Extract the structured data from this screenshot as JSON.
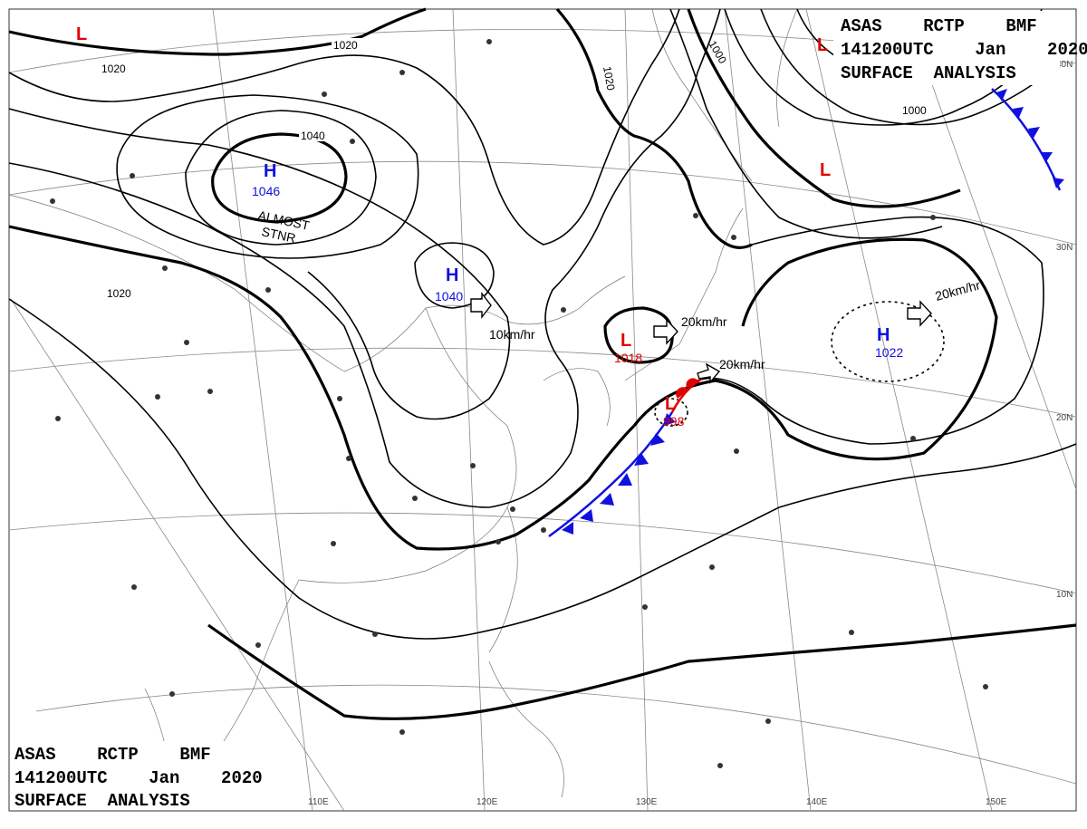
{
  "header": {
    "line1": "ASAS    RCTP    BMF",
    "line2": "141200UTC    Jan    2020",
    "line3": "SURFACE  ANALYSIS"
  },
  "footer": {
    "line1": "ASAS    RCTP    BMF",
    "line2": "141200UTC    Jan    2020",
    "line3": "SURFACE  ANALYSIS"
  },
  "longitudes": [
    "110E",
    "120E",
    "130E",
    "140E",
    "150E"
  ],
  "latitudes": [
    "40N",
    "30N",
    "20N",
    "10N"
  ],
  "isobars": [
    "1020",
    "1020",
    "1040",
    "1020",
    "1000",
    "1000",
    "1020"
  ],
  "pressure_systems": [
    {
      "type": "H",
      "value": "1046"
    },
    {
      "type": "H",
      "value": "1040"
    },
    {
      "type": "L",
      "value": "1018"
    },
    {
      "type": "L",
      "value": "998"
    },
    {
      "type": "H",
      "value": "1022"
    }
  ],
  "marker_L": "L",
  "marker_H": "H",
  "movements": [
    "10km/hr",
    "20km/hr",
    "20km/hr",
    "20km/hr"
  ],
  "note": [
    "ALMOST",
    "STNR"
  ],
  "colors": {
    "high": "#1010e0",
    "low": "#e00000",
    "cold_front": "#1010e0",
    "warm_front": "#e00000"
  }
}
